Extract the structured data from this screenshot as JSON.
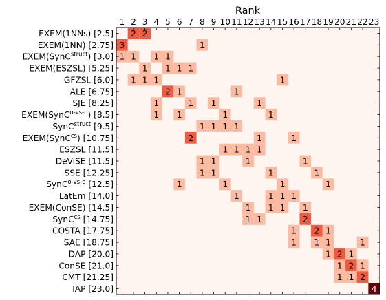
{
  "chart_data": {
    "type": "heatmap",
    "title": "Rank",
    "xlabel": "",
    "ylabel": "",
    "x_ticks": [
      "1",
      "2",
      "3",
      "4",
      "5",
      "6",
      "7",
      "8",
      "9",
      "10",
      "11",
      "12",
      "13",
      "14",
      "15",
      "16",
      "17",
      "18",
      "19",
      "20",
      "21",
      "22",
      "23"
    ],
    "x_axis_position": "top",
    "grid": false,
    "colormap": "Reds",
    "colors": {
      "background": "#fff5f0",
      "low": "#fcbba1",
      "mid": "#ef5a41",
      "high": "#67000d"
    },
    "rows": [
      {
        "parts": [
          {
            "t": "EXEM(1NNs) [2.5]"
          }
        ],
        "cells": [
          [
            2,
            2
          ],
          [
            3,
            2
          ]
        ]
      },
      {
        "parts": [
          {
            "t": "EXEM(1NN) [2.75]"
          }
        ],
        "cells": [
          [
            1,
            3
          ],
          [
            8,
            1
          ]
        ]
      },
      {
        "parts": [
          {
            "t": "EXEM(SynC"
          },
          {
            "t": "struct",
            "sup": true
          },
          {
            "t": ") [3.0]"
          }
        ],
        "cells": [
          [
            1,
            1
          ],
          [
            2,
            1
          ],
          [
            4,
            1
          ],
          [
            5,
            1
          ]
        ]
      },
      {
        "parts": [
          {
            "t": "EXEM(ESZSL) [5.25]"
          }
        ],
        "cells": [
          [
            3,
            1
          ],
          [
            5,
            1
          ],
          [
            6,
            1
          ],
          [
            7,
            1
          ]
        ]
      },
      {
        "parts": [
          {
            "t": "GFZSL [6.0]"
          }
        ],
        "cells": [
          [
            2,
            1
          ],
          [
            3,
            1
          ],
          [
            4,
            1
          ],
          [
            15,
            1
          ]
        ]
      },
      {
        "parts": [
          {
            "t": "ALE [6.75]"
          }
        ],
        "cells": [
          [
            5,
            2
          ],
          [
            6,
            1
          ],
          [
            11,
            1
          ]
        ]
      },
      {
        "parts": [
          {
            "t": "SJE [8.25]"
          }
        ],
        "cells": [
          [
            4,
            1
          ],
          [
            7,
            1
          ],
          [
            9,
            1
          ],
          [
            13,
            1
          ]
        ]
      },
      {
        "parts": [
          {
            "t": "EXEM(SynC"
          },
          {
            "t": "o-vs-o",
            "sup": true
          },
          {
            "t": ") [8.5]"
          }
        ],
        "cells": [
          [
            4,
            1
          ],
          [
            6,
            1
          ],
          [
            10,
            1
          ],
          [
            14,
            1
          ]
        ]
      },
      {
        "parts": [
          {
            "t": "SynC"
          },
          {
            "t": "struct",
            "sup": true
          },
          {
            "t": " [9.5]"
          }
        ],
        "cells": [
          [
            8,
            1
          ],
          [
            9,
            1
          ],
          [
            10,
            1
          ],
          [
            11,
            1
          ]
        ]
      },
      {
        "parts": [
          {
            "t": "EXEM(SynC"
          },
          {
            "t": "cs",
            "sup": true
          },
          {
            "t": ") [10.75]"
          }
        ],
        "cells": [
          [
            7,
            2
          ],
          [
            13,
            1
          ],
          [
            16,
            1
          ]
        ]
      },
      {
        "parts": [
          {
            "t": "ESZSL [11.5]"
          }
        ],
        "cells": [
          [
            10,
            1
          ],
          [
            11,
            1
          ],
          [
            12,
            1
          ],
          [
            13,
            1
          ]
        ]
      },
      {
        "parts": [
          {
            "t": "DeViSE [11.5]"
          }
        ],
        "cells": [
          [
            8,
            1
          ],
          [
            9,
            1
          ],
          [
            12,
            1
          ],
          [
            17,
            1
          ]
        ]
      },
      {
        "parts": [
          {
            "t": "SSE [12.25]"
          }
        ],
        "cells": [
          [
            8,
            1
          ],
          [
            9,
            1
          ],
          [
            14,
            1
          ],
          [
            18,
            1
          ]
        ]
      },
      {
        "parts": [
          {
            "t": "SynC"
          },
          {
            "t": "o-vs-o",
            "sup": true
          },
          {
            "t": " [12.5]"
          }
        ],
        "cells": [
          [
            6,
            1
          ],
          [
            10,
            1
          ],
          [
            15,
            1
          ],
          [
            19,
            1
          ]
        ]
      },
      {
        "parts": [
          {
            "t": "LatEm [14.0]"
          }
        ],
        "cells": [
          [
            11,
            1
          ],
          [
            14,
            1
          ],
          [
            15,
            1
          ],
          [
            16,
            1
          ]
        ]
      },
      {
        "parts": [
          {
            "t": "EXEM(ConSE) [14.5]"
          }
        ],
        "cells": [
          [
            12,
            1
          ],
          [
            14,
            1
          ],
          [
            15,
            1
          ],
          [
            17,
            1
          ]
        ]
      },
      {
        "parts": [
          {
            "t": "SynC"
          },
          {
            "t": "cs",
            "sup": true
          },
          {
            "t": " [14.75]"
          }
        ],
        "cells": [
          [
            12,
            1
          ],
          [
            13,
            1
          ],
          [
            17,
            2
          ]
        ]
      },
      {
        "parts": [
          {
            "t": "COSTA [17.75]"
          }
        ],
        "cells": [
          [
            16,
            1
          ],
          [
            18,
            2
          ],
          [
            19,
            1
          ]
        ]
      },
      {
        "parts": [
          {
            "t": "SAE [18.75]"
          }
        ],
        "cells": [
          [
            16,
            1
          ],
          [
            18,
            1
          ],
          [
            19,
            1
          ],
          [
            22,
            1
          ]
        ]
      },
      {
        "parts": [
          {
            "t": "DAP [20.0]"
          }
        ],
        "cells": [
          [
            19,
            1
          ],
          [
            20,
            2
          ],
          [
            21,
            1
          ]
        ]
      },
      {
        "parts": [
          {
            "t": "ConSE [21.0]"
          }
        ],
        "cells": [
          [
            20,
            1
          ],
          [
            21,
            2
          ],
          [
            22,
            1
          ]
        ]
      },
      {
        "parts": [
          {
            "t": "CMT [21.25]"
          }
        ],
        "cells": [
          [
            20,
            1
          ],
          [
            21,
            1
          ],
          [
            22,
            2
          ]
        ]
      },
      {
        "parts": [
          {
            "t": "IAP [23.0]"
          }
        ],
        "cells": [
          [
            23,
            4
          ]
        ]
      }
    ]
  }
}
